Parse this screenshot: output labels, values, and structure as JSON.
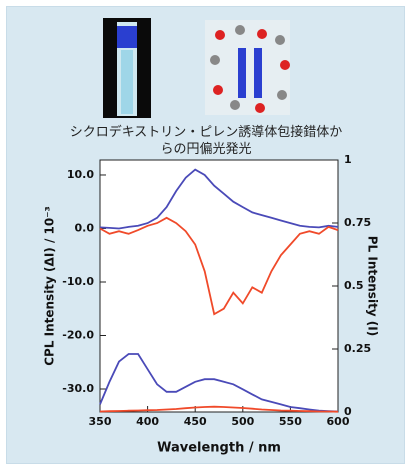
{
  "chart_data": {
    "type": "line",
    "caption": "シクロデキストリン・ピレン誘導体包接錯体からの円偏光発光",
    "xlabel": "Wavelength / nm",
    "ylabel": "CPL Intensity (ΔI) / 10⁻³",
    "y2label": "PL Intensity (I)",
    "x": [
      350,
      360,
      370,
      380,
      390,
      400,
      410,
      420,
      430,
      440,
      450,
      460,
      470,
      480,
      490,
      500,
      510,
      520,
      530,
      540,
      550,
      560,
      570,
      580,
      590,
      600
    ],
    "xlim": [
      350,
      600
    ],
    "xticks": [
      350,
      400,
      450,
      500,
      550,
      600
    ],
    "ylim": [
      -34.3,
      12.8
    ],
    "yticks": [
      {
        "value": 10,
        "label": "10.0"
      },
      {
        "value": 0,
        "label": "0.0"
      },
      {
        "value": -10,
        "label": "-10.0"
      },
      {
        "value": -20,
        "label": "-20.0"
      },
      {
        "value": -30,
        "label": "-30.0"
      }
    ],
    "y2lim": [
      0,
      1
    ],
    "y2ticks": [
      0,
      0.25,
      0.5,
      0.75,
      1
    ],
    "series": [
      {
        "color": "#4a4ab8",
        "values": [
          0.2,
          0.1,
          0,
          0.3,
          0.5,
          1,
          2,
          4,
          7,
          9.5,
          11,
          10,
          8,
          6.5,
          5,
          4,
          3,
          2.5,
          2,
          1.5,
          1,
          0.5,
          0.3,
          0.2,
          0.5,
          0.3
        ]
      },
      {
        "color": "#f04a2a",
        "values": [
          0,
          -1,
          -0.5,
          -1,
          -0.3,
          0.5,
          1,
          2,
          1,
          -0.5,
          -3,
          -8,
          -16,
          -15,
          -12,
          -14,
          -11,
          -12,
          -8,
          -5,
          -3,
          -1,
          -0.5,
          -1,
          0.3,
          -0.3
        ]
      },
      {
        "color": "#4a4ab8",
        "axis": "y2",
        "values": [
          0.03,
          0.12,
          0.2,
          0.23,
          0.23,
          0.17,
          0.11,
          0.08,
          0.08,
          0.1,
          0.12,
          0.13,
          0.13,
          0.12,
          0.11,
          0.09,
          0.07,
          0.05,
          0.04,
          0.03,
          0.02,
          0.015,
          0.01,
          0.005,
          0.003,
          0.002
        ]
      },
      {
        "color": "#f04a2a",
        "axis": "y2",
        "values": [
          0.002,
          0.003,
          0.004,
          0.005,
          0.006,
          0.007,
          0.008,
          0.01,
          0.012,
          0.015,
          0.018,
          0.02,
          0.021,
          0.02,
          0.018,
          0.016,
          0.013,
          0.01,
          0.008,
          0.006,
          0.005,
          0.004,
          0.003,
          0.002,
          0.002,
          0.001
        ]
      }
    ]
  }
}
